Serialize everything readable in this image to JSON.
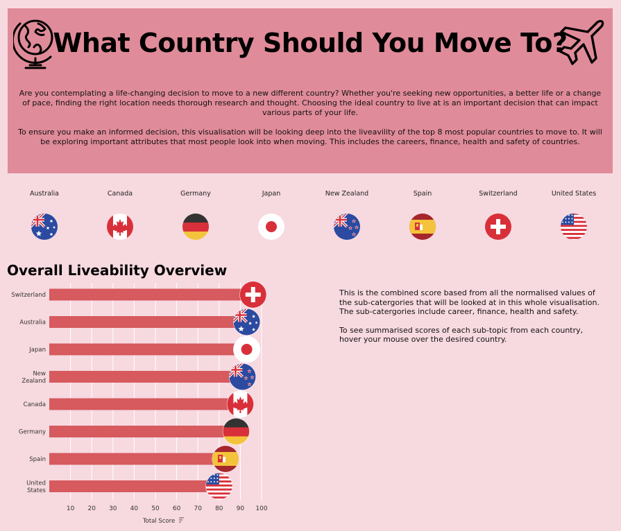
{
  "header": {
    "title": "What Country Should You Move To?",
    "intro_1": "Are you contemplating a life-changing decision to move to a new different country? Whether you're seeking new opportunities, a better life or a change of pace, finding the right location needs thorough research and thought. Choosing the ideal country to live at is an important decision that can impact various parts of your life.",
    "intro_2": "To ensure you make an informed decision, this visualisation will be looking deep into the liveavility of the top 8 most popular countries to move to. It will be exploring important attributes that most people look into when moving. This includes the careers, finance, health and safety of countries.",
    "left_icon": "globe-icon",
    "right_icon": "airplane-icon",
    "background": "#e08b99"
  },
  "countries": [
    {
      "name": "Australia",
      "flag": "australia-flag-icon"
    },
    {
      "name": "Canada",
      "flag": "canada-flag-icon"
    },
    {
      "name": "Germany",
      "flag": "germany-flag-icon"
    },
    {
      "name": "Japan",
      "flag": "japan-flag-icon"
    },
    {
      "name": "New Zealand",
      "flag": "new-zealand-flag-icon"
    },
    {
      "name": "Spain",
      "flag": "spain-flag-icon"
    },
    {
      "name": "Switzerland",
      "flag": "switzerland-flag-icon"
    },
    {
      "name": "United States",
      "flag": "united-states-flag-icon"
    }
  ],
  "overview": {
    "title": "Overall Liveability Overview",
    "desc_1": "This is the combined score based from all the normalised values of the sub-catergories that will be looked at in this whole visualisation. The sub-catergories include career, finance, health and safety.",
    "desc_2": "To see summarised scores of each sub-topic from each country, hover your mouse over the desired country."
  },
  "chart_data": {
    "type": "bar",
    "orientation": "horizontal",
    "categories": [
      "Switzerland",
      "Australia",
      "Japan",
      "New Zealand",
      "Canada",
      "Germany",
      "Spain",
      "United States"
    ],
    "category_labels": [
      [
        "Switzerland"
      ],
      [
        "Australia"
      ],
      [
        "Japan"
      ],
      [
        "New",
        "Zealand"
      ],
      [
        "Canada"
      ],
      [
        "Germany"
      ],
      [
        "Spain"
      ],
      [
        "United",
        "States"
      ]
    ],
    "values": [
      96,
      93,
      93,
      91,
      90,
      88,
      83,
      80
    ],
    "xlabel": "Total Score",
    "xticks": [
      10,
      20,
      30,
      40,
      50,
      60,
      70,
      80,
      90,
      100
    ],
    "xlim": [
      0,
      100
    ],
    "grid": true,
    "bar_color": "#d65a5e"
  }
}
